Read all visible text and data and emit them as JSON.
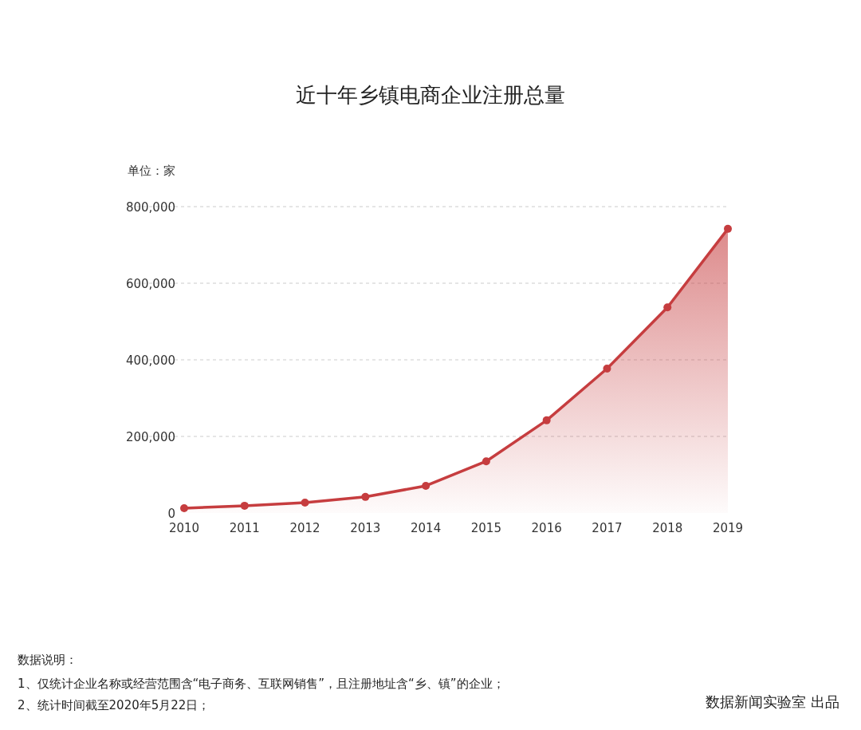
{
  "chart_data": {
    "type": "area",
    "title": "近十年乡镇电商企业注册总量",
    "ylabel": "单位：家",
    "categories": [
      "2010",
      "2011",
      "2012",
      "2013",
      "2014",
      "2015",
      "2016",
      "2017",
      "2018",
      "2019"
    ],
    "series": [
      {
        "color": "#c63d3f",
        "values": [
          12500,
          19000,
          27000,
          42000,
          71000,
          135000,
          242000,
          377000,
          537000,
          742000
        ]
      }
    ],
    "ylim": [
      0,
      800000
    ],
    "yticks": [
      0,
      {
        "value": 200000,
        "label": "200,000"
      },
      {
        "value": 400000,
        "label": "400,000"
      },
      {
        "value": 600000,
        "label": "600,000"
      },
      {
        "value": 800000,
        "label": "800,000"
      }
    ],
    "grid": "y",
    "marker": "circle",
    "line_style": "solid",
    "annotations": [
      "数据说明：",
      "1、仅统计企业名称或经营范围含“电子商务、互联网销售”，且注册地址含“乡、镇”的企业；",
      "2、统计时间截至2020年5月22日；",
      "数据新闻实验室 出品"
    ]
  }
}
